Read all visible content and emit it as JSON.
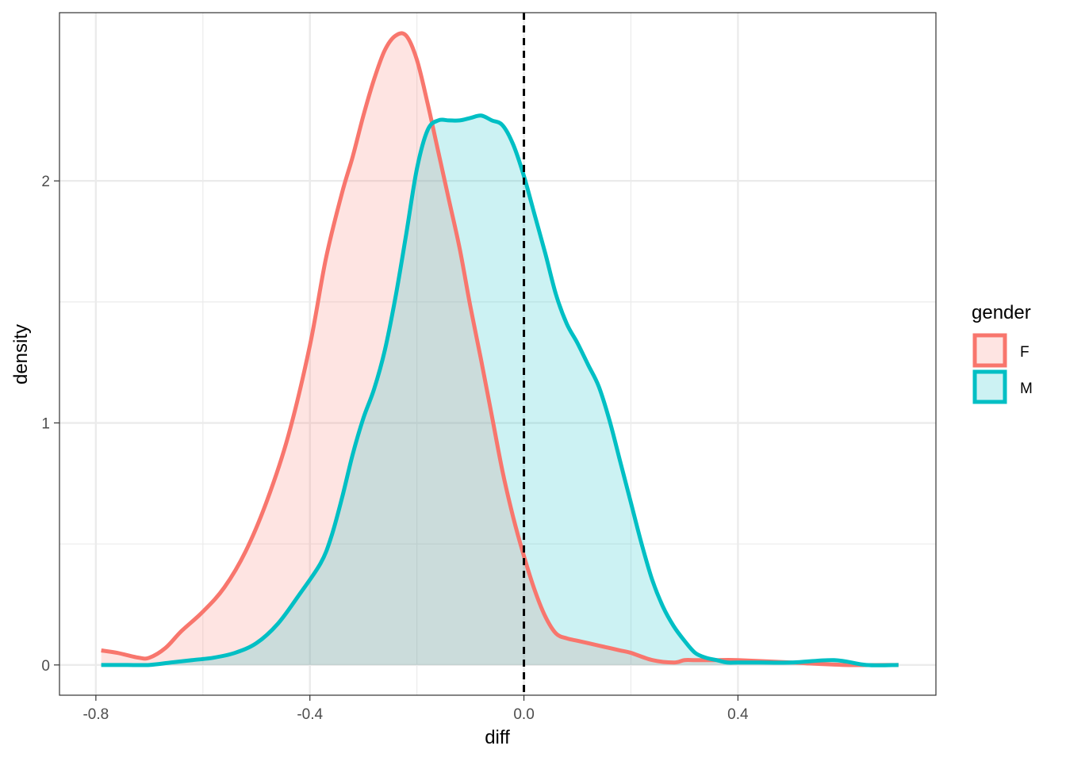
{
  "chart_data": {
    "type": "area",
    "title": "",
    "xlabel": "diff",
    "ylabel": "density",
    "xlim": [
      -0.868,
      0.77
    ],
    "ylim": [
      -0.125,
      2.695
    ],
    "x_ticks": [
      -0.8,
      -0.4,
      0.0,
      0.4
    ],
    "x_tick_labels": [
      "-0.8",
      "-0.4",
      "0.0",
      "0.4"
    ],
    "y_ticks": [
      0,
      1,
      2
    ],
    "y_tick_labels": [
      "0",
      "1",
      "2"
    ],
    "grid": true,
    "reference_line": {
      "x": 0.0,
      "style": "dashed",
      "color": "#000000"
    },
    "legend": {
      "title": "gender",
      "placement": "right"
    },
    "series": [
      {
        "name": "F",
        "color": "#F8766D",
        "fill": "#F8766D",
        "fill_opacity": 0.2,
        "x": [
          -0.79,
          -0.76,
          -0.72,
          -0.7,
          -0.67,
          -0.64,
          -0.6,
          -0.56,
          -0.52,
          -0.48,
          -0.44,
          -0.4,
          -0.37,
          -0.34,
          -0.32,
          -0.3,
          -0.28,
          -0.26,
          -0.24,
          -0.22,
          -0.2,
          -0.18,
          -0.16,
          -0.14,
          -0.12,
          -0.1,
          -0.08,
          -0.06,
          -0.04,
          -0.02,
          0.0,
          0.02,
          0.04,
          0.06,
          0.08,
          0.1,
          0.12,
          0.14,
          0.16,
          0.18,
          0.2,
          0.24,
          0.28,
          0.3,
          0.32,
          0.36,
          0.4,
          0.5,
          0.6,
          0.7
        ],
        "y": [
          0.06,
          0.05,
          0.03,
          0.03,
          0.07,
          0.14,
          0.22,
          0.32,
          0.47,
          0.68,
          0.95,
          1.32,
          1.68,
          1.95,
          2.1,
          2.27,
          2.42,
          2.54,
          2.6,
          2.6,
          2.5,
          2.32,
          2.12,
          1.92,
          1.72,
          1.48,
          1.26,
          1.03,
          0.8,
          0.61,
          0.45,
          0.31,
          0.2,
          0.13,
          0.11,
          0.1,
          0.09,
          0.08,
          0.07,
          0.06,
          0.05,
          0.02,
          0.01,
          0.02,
          0.02,
          0.02,
          0.02,
          0.01,
          0.0,
          0.0
        ]
      },
      {
        "name": "M",
        "color": "#00BFC4",
        "fill": "#00BFC4",
        "fill_opacity": 0.2,
        "x": [
          -0.79,
          -0.74,
          -0.7,
          -0.66,
          -0.62,
          -0.58,
          -0.54,
          -0.5,
          -0.46,
          -0.42,
          -0.38,
          -0.36,
          -0.34,
          -0.32,
          -0.3,
          -0.28,
          -0.26,
          -0.24,
          -0.22,
          -0.2,
          -0.18,
          -0.16,
          -0.14,
          -0.12,
          -0.1,
          -0.08,
          -0.06,
          -0.04,
          -0.02,
          0.0,
          0.02,
          0.04,
          0.06,
          0.08,
          0.1,
          0.12,
          0.14,
          0.16,
          0.18,
          0.2,
          0.22,
          0.24,
          0.26,
          0.28,
          0.3,
          0.32,
          0.34,
          0.36,
          0.38,
          0.4,
          0.44,
          0.5,
          0.58,
          0.64,
          0.7
        ],
        "y": [
          0.0,
          0.0,
          0.0,
          0.01,
          0.02,
          0.03,
          0.05,
          0.09,
          0.17,
          0.29,
          0.42,
          0.53,
          0.69,
          0.87,
          1.02,
          1.14,
          1.3,
          1.52,
          1.78,
          2.05,
          2.21,
          2.25,
          2.25,
          2.25,
          2.26,
          2.27,
          2.25,
          2.23,
          2.15,
          2.02,
          1.86,
          1.7,
          1.53,
          1.41,
          1.33,
          1.24,
          1.15,
          1.01,
          0.84,
          0.67,
          0.5,
          0.35,
          0.24,
          0.16,
          0.1,
          0.05,
          0.03,
          0.02,
          0.01,
          0.01,
          0.01,
          0.01,
          0.02,
          0.0,
          0.0
        ]
      }
    ]
  }
}
